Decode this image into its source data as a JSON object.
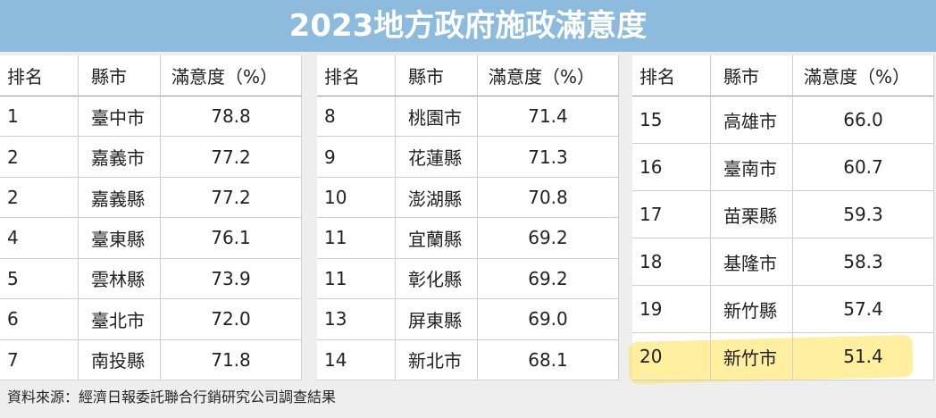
{
  "header": {
    "title": "2023地方政府施政滿意度"
  },
  "tables": [
    {
      "columns": [
        "排名",
        "縣市",
        "滿意度（%）"
      ],
      "rows": [
        [
          "1",
          "臺中市",
          "78.8"
        ],
        [
          "2",
          "嘉義市",
          "77.2"
        ],
        [
          "2",
          "嘉義縣",
          "77.2"
        ],
        [
          "4",
          "臺東縣",
          "76.1"
        ],
        [
          "5",
          "雲林縣",
          "73.9"
        ],
        [
          "6",
          "臺北市",
          "72.0"
        ],
        [
          "7",
          "南投縣",
          "71.8"
        ]
      ]
    },
    {
      "columns": [
        "排名",
        "縣市",
        "滿意度（%）"
      ],
      "rows": [
        [
          "8",
          "桃園市",
          "71.4"
        ],
        [
          "9",
          "花蓮縣",
          "71.3"
        ],
        [
          "10",
          "澎湖縣",
          "70.8"
        ],
        [
          "11",
          "宜蘭縣",
          "69.2"
        ],
        [
          "11",
          "彰化縣",
          "69.2"
        ],
        [
          "13",
          "屏東縣",
          "69.0"
        ],
        [
          "14",
          "新北市",
          "68.1"
        ]
      ]
    },
    {
      "columns": [
        "排名",
        "縣市",
        "滿意度（%）"
      ],
      "rows": [
        [
          "15",
          "高雄市",
          "66.0"
        ],
        [
          "16",
          "臺南市",
          "60.7"
        ],
        [
          "17",
          "苗栗縣",
          "59.3"
        ],
        [
          "18",
          "基隆市",
          "58.3"
        ],
        [
          "19",
          "新竹縣",
          "57.4"
        ],
        [
          "20",
          "新竹市",
          "51.4"
        ]
      ]
    }
  ],
  "footer": {
    "source": "資料來源：經濟日報委託聯合行銷研究公司調查結果"
  }
}
